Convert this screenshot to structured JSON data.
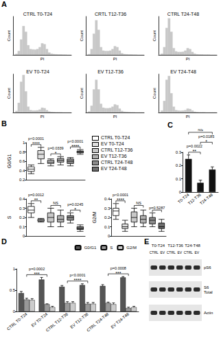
{
  "chart_data": [
    {
      "panel": "A",
      "type": "histogram",
      "title": "CTRL T0-T24",
      "xlabel": "PI",
      "ylabel": "Count",
      "xlim": [
        0,
        250
      ],
      "ylim": [
        0,
        200
      ],
      "tick_labels": false,
      "color": "#c8c8c8",
      "bins": [
        0,
        10,
        20,
        30,
        40,
        50,
        60,
        70,
        80,
        90,
        100,
        110,
        120,
        130,
        140,
        150,
        160,
        170,
        180,
        190,
        200,
        210,
        220,
        230,
        240,
        250
      ],
      "counts": [
        0,
        5,
        20,
        80,
        150,
        120,
        50,
        30,
        28,
        27,
        30,
        40,
        60,
        55,
        30,
        12,
        6,
        4,
        3,
        2,
        2,
        1,
        1,
        0,
        0
      ]
    },
    {
      "panel": "A",
      "type": "histogram",
      "title": "CRTL T12-T36",
      "xlabel": "PI",
      "ylabel": "Count",
      "xlim": [
        0,
        250
      ],
      "ylim": [
        0,
        200
      ],
      "tick_labels": false,
      "color": "#c8c8c8",
      "bins": [
        0,
        10,
        20,
        30,
        40,
        50,
        60,
        70,
        80,
        90,
        100,
        110,
        120,
        130,
        140,
        150,
        160,
        170,
        180,
        190,
        200,
        210,
        220,
        230,
        240,
        250
      ],
      "counts": [
        0,
        4,
        30,
        110,
        180,
        130,
        40,
        22,
        20,
        20,
        22,
        30,
        45,
        40,
        22,
        8,
        4,
        3,
        2,
        2,
        1,
        1,
        0,
        0,
        0
      ]
    },
    {
      "panel": "A",
      "type": "histogram",
      "title": "CTRL T24-T48",
      "xlabel": "PI",
      "ylabel": "Count",
      "xlim": [
        0,
        250
      ],
      "ylim": [
        0,
        200
      ],
      "tick_labels": false,
      "color": "#c8c8c8",
      "bins": [
        0,
        10,
        20,
        30,
        40,
        50,
        60,
        70,
        80,
        90,
        100,
        110,
        120,
        130,
        140,
        150,
        160,
        170,
        180,
        190,
        200,
        210,
        220,
        230,
        240,
        250
      ],
      "counts": [
        0,
        6,
        40,
        140,
        190,
        120,
        35,
        18,
        15,
        15,
        16,
        22,
        35,
        30,
        15,
        6,
        3,
        2,
        2,
        1,
        1,
        1,
        0,
        0,
        0
      ]
    },
    {
      "panel": "A",
      "type": "histogram",
      "title": "EV T0-T24",
      "xlabel": "PI",
      "ylabel": "Count",
      "xlim": [
        0,
        250
      ],
      "ylim": [
        0,
        200
      ],
      "tick_labels": false,
      "color": "#c8c8c8",
      "bins": [
        0,
        10,
        20,
        30,
        40,
        50,
        60,
        70,
        80,
        90,
        100,
        110,
        120,
        130,
        140,
        150,
        160,
        170,
        180,
        190,
        200,
        210,
        220,
        230,
        240,
        250
      ],
      "counts": [
        0,
        8,
        50,
        160,
        195,
        110,
        30,
        12,
        10,
        10,
        11,
        15,
        25,
        22,
        12,
        5,
        3,
        2,
        1,
        1,
        1,
        0,
        0,
        0,
        0
      ]
    },
    {
      "panel": "A",
      "type": "histogram",
      "title": "EV T12-T36",
      "xlabel": "PI",
      "ylabel": "Count",
      "xlim": [
        0,
        250
      ],
      "ylim": [
        0,
        200
      ],
      "tick_labels": false,
      "color": "#c8c8c8",
      "bins": [
        0,
        10,
        20,
        30,
        40,
        50,
        60,
        70,
        80,
        90,
        100,
        110,
        120,
        130,
        140,
        150,
        160,
        170,
        180,
        190,
        200,
        210,
        220,
        230,
        240,
        250
      ],
      "counts": [
        0,
        6,
        35,
        120,
        170,
        120,
        45,
        25,
        22,
        22,
        24,
        30,
        42,
        38,
        20,
        8,
        4,
        3,
        2,
        1,
        1,
        0,
        0,
        0,
        0
      ]
    },
    {
      "panel": "A",
      "type": "histogram",
      "title": "EV T24-T48",
      "xlabel": "PI",
      "ylabel": "Count",
      "xlim": [
        0,
        250
      ],
      "ylim": [
        0,
        200
      ],
      "tick_labels": false,
      "color": "#c8c8c8",
      "bins": [
        0,
        10,
        20,
        30,
        40,
        50,
        60,
        70,
        80,
        90,
        100,
        110,
        120,
        130,
        140,
        150,
        160,
        170,
        180,
        190,
        200,
        210,
        220,
        230,
        240,
        250
      ],
      "counts": [
        0,
        10,
        60,
        170,
        190,
        100,
        30,
        12,
        10,
        9,
        10,
        12,
        20,
        18,
        10,
        4,
        2,
        1,
        1,
        1,
        0,
        0,
        0,
        0,
        0
      ]
    },
    {
      "panel": "B",
      "type": "box",
      "ylabel": "G0/G1",
      "legend": "right",
      "tick_labels": "y",
      "categories": [
        "CTRL T0-T24",
        "EV T0-T24",
        "CTRL T12-T36",
        "EV T12-T36",
        "CTRL T24-T48",
        "EV T24-T48"
      ],
      "colors": [
        "#ffffff",
        "#e0e0e0",
        "#c8c8c8",
        "#b0b0b0",
        "#8c8c8c",
        "#6e6e6e"
      ],
      "values": [
        [
          0.33,
          0.38,
          0.43,
          0.48,
          0.52
        ],
        [
          0.55,
          0.65,
          0.75,
          0.83,
          0.9
        ],
        [
          0.5,
          0.55,
          0.58,
          0.62,
          0.65
        ],
        [
          0.52,
          0.58,
          0.62,
          0.66,
          0.7
        ],
        [
          0.5,
          0.55,
          0.6,
          0.65,
          0.68
        ],
        [
          0.75,
          0.78,
          0.8,
          0.82,
          0.85
        ]
      ],
      "ylim": [
        0.2,
        1
      ],
      "yticks": [
        0.2,
        0.4,
        0.6,
        0.8,
        1
      ],
      "annotations": [
        {
          "between": [
            "CTRL T0-T24",
            "EV T0-T24"
          ],
          "text": "p<0.0001",
          "stars": "****"
        },
        {
          "between": [
            "CTRL T12-T36",
            "EV T12-T36"
          ],
          "text": "p=0.0339",
          "stars": "*"
        },
        {
          "between": [
            "CTRL T24-T48",
            "EV T24-T48"
          ],
          "text": "p<0.0001",
          "stars": "****"
        }
      ]
    },
    {
      "panel": "B",
      "type": "box",
      "ylabel": "S",
      "tick_labels": "y",
      "categories": [
        "CTRL T0-T24",
        "EV T0-T24",
        "CTRL T12-T36",
        "EV T12-T36",
        "CTRL T24-T48",
        "EV T24-T48"
      ],
      "colors": [
        "#ffffff",
        "#e0e0e0",
        "#c8c8c8",
        "#b0b0b0",
        "#8c8c8c",
        "#6e6e6e"
      ],
      "values": [
        [
          0.2,
          0.25,
          0.28,
          0.32,
          0.35
        ],
        [
          0.15,
          0.16,
          0.17,
          0.18,
          0.19
        ],
        [
          0.1,
          0.15,
          0.2,
          0.25,
          0.3
        ],
        [
          0.1,
          0.15,
          0.18,
          0.22,
          0.28
        ],
        [
          0.14,
          0.17,
          0.2,
          0.22,
          0.25
        ],
        [
          0.05,
          0.07,
          0.08,
          0.1,
          0.12
        ]
      ],
      "ylim": [
        0,
        0.4
      ],
      "yticks": [
        0,
        0.1,
        0.2,
        0.3,
        0.4
      ],
      "annotations": [
        {
          "between": [
            "CTRL T0-T24",
            "EV T0-T24"
          ],
          "text": "p=0.0012",
          "stars": "**"
        },
        {
          "between": [
            "CTRL T12-T36",
            "EV T12-T36"
          ],
          "text": "NS"
        },
        {
          "between": [
            "CTRL T24-T48",
            "EV T24-T48"
          ],
          "text": "p=0.0245",
          "stars": "*"
        }
      ]
    },
    {
      "panel": "B",
      "type": "box",
      "ylabel": "G2/M",
      "tick_labels": "y",
      "categories": [
        "CTRL T0-T24",
        "EV T0-T24",
        "CTRL T12-T36",
        "EV T12-T36",
        "CTRL T24-T48",
        "EV T24-T48"
      ],
      "colors": [
        "#ffffff",
        "#e0e0e0",
        "#c8c8c8",
        "#b0b0b0",
        "#8c8c8c",
        "#6e6e6e"
      ],
      "values": [
        [
          0.18,
          0.22,
          0.27,
          0.3,
          0.35
        ],
        [
          0.05,
          0.08,
          0.1,
          0.13,
          0.17
        ],
        [
          0.1,
          0.15,
          0.2,
          0.26,
          0.3
        ],
        [
          0.1,
          0.14,
          0.18,
          0.22,
          0.28
        ],
        [
          0.1,
          0.13,
          0.17,
          0.2,
          0.25
        ],
        [
          0.05,
          0.08,
          0.1,
          0.14,
          0.18
        ]
      ],
      "ylim": [
        0,
        0.4
      ],
      "yticks": [
        0,
        0.1,
        0.2,
        0.3,
        0.4
      ],
      "annotations": [
        {
          "between": [
            "CTRL T0-T24",
            "EV T0-T24"
          ],
          "text": "p<0.0001",
          "stars": "****"
        },
        {
          "between": [
            "CTRL T12-T36",
            "EV T12-T36"
          ],
          "text": "NS"
        },
        {
          "between": [
            "CTRL T24-T48",
            "EV T24-T48"
          ],
          "text": "p=0.5287"
        }
      ]
    },
    {
      "panel": "C",
      "type": "bar",
      "categories": [
        "T0-T24",
        "T12-T36",
        "T24-T48"
      ],
      "values": [
        0.25,
        0.07,
        0.17
      ],
      "errors": [
        0.03,
        0.02,
        0.02
      ],
      "color": "#111111",
      "ylim": [
        0,
        0.3
      ],
      "yticks": [
        0,
        0.1,
        0.2,
        0.3
      ],
      "annotations": [
        {
          "between": [
            "T0-T24",
            "T12-T36"
          ],
          "text": "p=0.0022",
          "stars": "**"
        },
        {
          "between": [
            "T12-T36",
            "T24-T48"
          ],
          "text": "p=0.0185",
          "stars": "*"
        },
        {
          "between": [
            "T0-T24",
            "T24-T48"
          ],
          "text": "NS"
        }
      ]
    },
    {
      "panel": "D",
      "type": "bar",
      "legend": "upper right",
      "categories": [
        "CTRL T0-T24",
        "EV T0-T24",
        "CTRL T12-T36",
        "EV T12-T36",
        "CTRL T24-T48",
        "EV T24-T48"
      ],
      "series": [
        {
          "name": "G0/G1",
          "color": "#555555",
          "values": [
            0.43,
            0.75,
            0.58,
            0.62,
            0.6,
            0.8
          ],
          "errors": [
            0.04,
            0.05,
            0.03,
            0.03,
            0.03,
            0.02
          ]
        },
        {
          "name": "S",
          "color": "#999999",
          "values": [
            0.28,
            0.17,
            0.2,
            0.18,
            0.2,
            0.08
          ],
          "errors": [
            0.03,
            0.01,
            0.03,
            0.03,
            0.02,
            0.02
          ]
        },
        {
          "name": "G2/M",
          "color": "#cccccc",
          "values": [
            0.27,
            0.1,
            0.2,
            0.18,
            0.17,
            0.1
          ],
          "errors": [
            0.03,
            0.02,
            0.03,
            0.03,
            0.03,
            0.02
          ]
        }
      ],
      "ylim": [
        0,
        1
      ],
      "yticks": [
        0,
        0.5,
        1
      ],
      "annotations": [
        {
          "between": [
            "CTRL T0-T24",
            "EV T0-T24"
          ],
          "text": "p=0.0002",
          "stars": "***"
        },
        {
          "between": [
            "CTRL T12-T36",
            "EV T12-T36"
          ],
          "text": "p<0.0001",
          "stars": "****"
        },
        {
          "between": [
            "CTRL T24-T48",
            "EV T24-T48"
          ],
          "text": "p=0.0008",
          "stars": "***"
        }
      ]
    }
  ],
  "blot": {
    "panel": "E",
    "lane_groups": [
      "T0-T24",
      "T12-T36",
      "T24-T48"
    ],
    "lanes": [
      "CTRL",
      "EV"
    ],
    "rows": [
      [
        "pS6"
      ],
      [
        "S6",
        "Total"
      ],
      [
        "Actin"
      ]
    ]
  }
}
